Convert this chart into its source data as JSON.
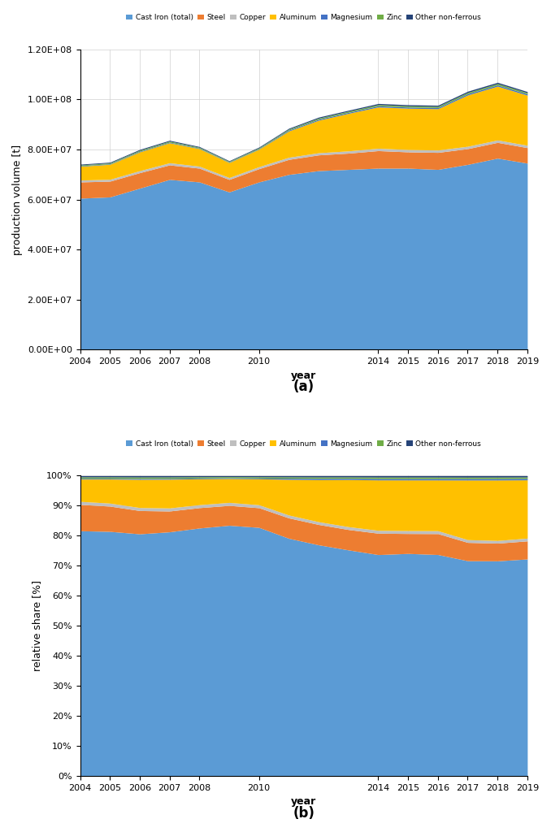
{
  "years": [
    2004,
    2005,
    2006,
    2007,
    2008,
    2009,
    2010,
    2011,
    2012,
    2013,
    2014,
    2015,
    2016,
    2017,
    2018,
    2019
  ],
  "xtick_years": [
    2004,
    2005,
    2006,
    2007,
    2008,
    2010,
    2014,
    2015,
    2016,
    2017,
    2018,
    2019
  ],
  "cast_iron": [
    60500000.0,
    61000000.0,
    64500000.0,
    68000000.0,
    67000000.0,
    63000000.0,
    67000000.0,
    70000000.0,
    71500000.0,
    72000000.0,
    72500000.0,
    72500000.0,
    72000000.0,
    74000000.0,
    76500000.0,
    74500000.0
  ],
  "steel": [
    6500000.0,
    6300000.0,
    6200000.0,
    5800000.0,
    5500000.0,
    5000000.0,
    5300000.0,
    6000000.0,
    6300000.0,
    6500000.0,
    7000000.0,
    6500000.0,
    6800000.0,
    6300000.0,
    6300000.0,
    6200000.0
  ],
  "copper": [
    750000.0,
    750000.0,
    800000.0,
    850000.0,
    800000.0,
    750000.0,
    800000.0,
    850000.0,
    850000.0,
    900000.0,
    950000.0,
    950000.0,
    950000.0,
    950000.0,
    950000.0,
    950000.0
  ],
  "aluminum": [
    5500000.0,
    6000000.0,
    7500000.0,
    8000000.0,
    7000000.0,
    6000000.0,
    7000000.0,
    10500000.0,
    13000000.0,
    15000000.0,
    16500000.0,
    16500000.0,
    16500000.0,
    20500000.0,
    21500000.0,
    20000000.0
  ],
  "magnesium": [
    200000.0,
    200000.0,
    250000.0,
    250000.0,
    200000.0,
    180000.0,
    200000.0,
    350000.0,
    400000.0,
    400000.0,
    450000.0,
    450000.0,
    450000.0,
    500000.0,
    500000.0,
    500000.0
  ],
  "zinc": [
    350000.0,
    350000.0,
    400000.0,
    400000.0,
    350000.0,
    300000.0,
    350000.0,
    400000.0,
    450000.0,
    450000.0,
    500000.0,
    500000.0,
    500000.0,
    500000.0,
    550000.0,
    500000.0
  ],
  "other_nonferrous": [
    300000.0,
    300000.0,
    350000.0,
    350000.0,
    300000.0,
    250000.0,
    300000.0,
    350000.0,
    400000.0,
    400000.0,
    450000.0,
    450000.0,
    450000.0,
    500000.0,
    500000.0,
    450000.0
  ],
  "colors": {
    "cast_iron": "#5B9BD5",
    "steel": "#ED7D31",
    "copper": "#BFBFBF",
    "aluminum": "#FFC000",
    "magnesium": "#4472C4",
    "zinc": "#70AD47",
    "other_nonferrous": "#264478"
  },
  "labels": [
    "Cast Iron (total)",
    "Steel",
    "Copper",
    "Aluminum",
    "Magnesium",
    "Zinc",
    "Other non-ferrous"
  ],
  "ylabel_a": "production volume [t]",
  "ylabel_b": "relative share [%]",
  "xlabel": "year",
  "label_a": "(a)",
  "label_b": "(b)",
  "yticks_a": [
    0.0,
    20000000.0,
    40000000.0,
    60000000.0,
    80000000.0,
    100000000.0,
    120000000.0
  ],
  "ytick_labels_a": [
    "0.00E+00",
    "2.00E+07",
    "4.00E+07",
    "6.00E+07",
    "8.00E+07",
    "1.00E+08",
    "1.20E+08"
  ],
  "yticks_b": [
    0,
    10,
    20,
    30,
    40,
    50,
    60,
    70,
    80,
    90,
    100
  ],
  "background_color": "#FFFFFF",
  "grid_color": "#D0D0D0"
}
